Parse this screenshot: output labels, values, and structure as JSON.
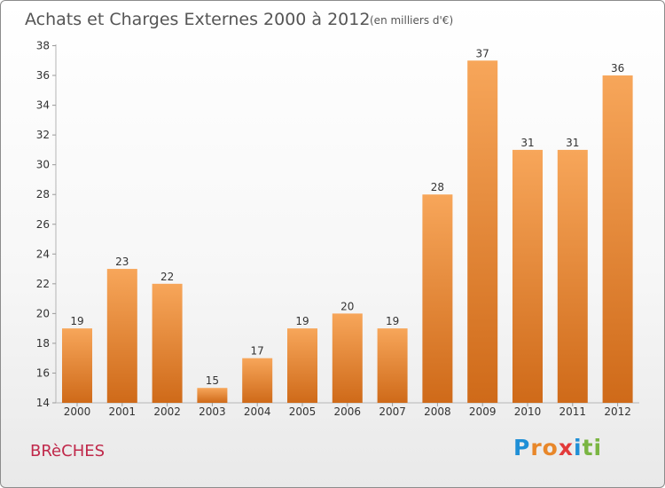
{
  "chart_data": {
    "type": "bar",
    "title": "Achats et Charges Externes 2000 à 2012",
    "subtitle": "(en milliers d'€)",
    "categories": [
      "2000",
      "2001",
      "2002",
      "2003",
      "2004",
      "2005",
      "2006",
      "2007",
      "2008",
      "2009",
      "2010",
      "2011",
      "2012"
    ],
    "values": [
      19,
      23,
      22,
      15,
      17,
      19,
      20,
      19,
      28,
      37,
      31,
      31,
      36
    ],
    "ylim": [
      14,
      38
    ],
    "yticks": [
      14,
      16,
      18,
      20,
      22,
      24,
      26,
      28,
      30,
      32,
      34,
      36,
      38
    ],
    "xlabel": "",
    "ylabel": "",
    "grid": false,
    "bar_color": "#f0903a"
  },
  "footer": {
    "town": "BRèCHES",
    "logo_letters": [
      {
        "ch": "P",
        "color": "#1f8fd6"
      },
      {
        "ch": "r",
        "color": "#e8872a"
      },
      {
        "ch": "o",
        "color": "#e8872a"
      },
      {
        "ch": "x",
        "color": "#e23a3a"
      },
      {
        "ch": "i",
        "color": "#1f8fd6"
      },
      {
        "ch": "t",
        "color": "#7ab542"
      },
      {
        "ch": "i",
        "color": "#7ab542"
      }
    ]
  }
}
